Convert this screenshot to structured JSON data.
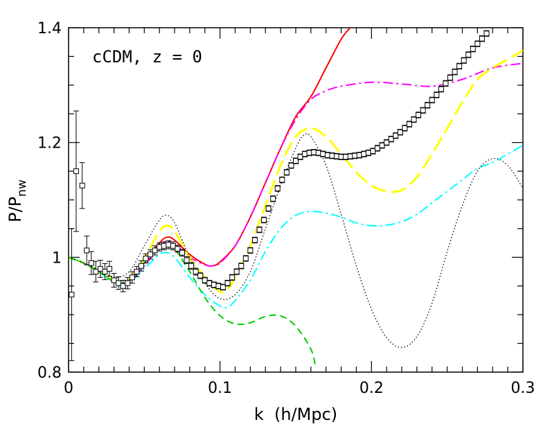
{
  "chart_data": {
    "type": "line",
    "title": "",
    "annotation": "cCDM, z = 0",
    "xlabel": "k  (h/Mpc)",
    "ylabel_main": "P/P",
    "ylabel_sub": "nw",
    "xlim": [
      0,
      0.3
    ],
    "ylim": [
      0.8,
      1.4
    ],
    "x_major_ticks": [
      0,
      0.1,
      0.2,
      0.3
    ],
    "x_tick_labels": [
      "0",
      "0.1",
      "0.2",
      "0.3"
    ],
    "y_major_ticks": [
      0.8,
      1.0,
      1.2,
      1.4
    ],
    "y_tick_labels": [
      "0.8",
      "1",
      "1.2",
      "1.4"
    ],
    "x_minor_step": 0.01,
    "y_minor_step": 0.05,
    "grid": false,
    "legend": "none",
    "series": [
      {
        "color": "#ff0000",
        "style": "solid",
        "width": 2,
        "points": [
          [
            0.0,
            1.0
          ],
          [
            0.01,
            0.99
          ],
          [
            0.02,
            0.975
          ],
          [
            0.03,
            0.957
          ],
          [
            0.035,
            0.955
          ],
          [
            0.04,
            0.96
          ],
          [
            0.05,
            0.99
          ],
          [
            0.06,
            1.025
          ],
          [
            0.065,
            1.035
          ],
          [
            0.07,
            1.03
          ],
          [
            0.08,
            1.005
          ],
          [
            0.09,
            0.988
          ],
          [
            0.095,
            0.985
          ],
          [
            0.1,
            0.992
          ],
          [
            0.11,
            1.02
          ],
          [
            0.12,
            1.07
          ],
          [
            0.13,
            1.13
          ],
          [
            0.14,
            1.19
          ],
          [
            0.15,
            1.245
          ],
          [
            0.16,
            1.28
          ],
          [
            0.17,
            1.33
          ],
          [
            0.18,
            1.38
          ],
          [
            0.186,
            1.4
          ]
        ]
      },
      {
        "color": "#ff00ff",
        "style": "dashdot",
        "width": 2,
        "points": [
          [
            0.0,
            1.0
          ],
          [
            0.01,
            0.99
          ],
          [
            0.02,
            0.975
          ],
          [
            0.03,
            0.957
          ],
          [
            0.035,
            0.955
          ],
          [
            0.04,
            0.958
          ],
          [
            0.05,
            0.985
          ],
          [
            0.06,
            1.018
          ],
          [
            0.065,
            1.028
          ],
          [
            0.07,
            1.022
          ],
          [
            0.08,
            1.0
          ],
          [
            0.09,
            0.987
          ],
          [
            0.095,
            0.985
          ],
          [
            0.1,
            0.99
          ],
          [
            0.11,
            1.02
          ],
          [
            0.12,
            1.07
          ],
          [
            0.13,
            1.13
          ],
          [
            0.14,
            1.19
          ],
          [
            0.15,
            1.24
          ],
          [
            0.16,
            1.275
          ],
          [
            0.17,
            1.29
          ],
          [
            0.18,
            1.298
          ],
          [
            0.2,
            1.305
          ],
          [
            0.22,
            1.302
          ],
          [
            0.24,
            1.298
          ],
          [
            0.26,
            1.31
          ],
          [
            0.28,
            1.33
          ],
          [
            0.3,
            1.338
          ]
        ]
      },
      {
        "color": "#ffff00",
        "style": "longdash",
        "width": 3,
        "points": [
          [
            0.0,
            1.0
          ],
          [
            0.01,
            0.99
          ],
          [
            0.02,
            0.975
          ],
          [
            0.03,
            0.96
          ],
          [
            0.035,
            0.958
          ],
          [
            0.04,
            0.962
          ],
          [
            0.05,
            0.998
          ],
          [
            0.06,
            1.045
          ],
          [
            0.065,
            1.055
          ],
          [
            0.07,
            1.045
          ],
          [
            0.08,
            1.0
          ],
          [
            0.09,
            0.965
          ],
          [
            0.1,
            0.94
          ],
          [
            0.105,
            0.945
          ],
          [
            0.11,
            0.965
          ],
          [
            0.12,
            1.02
          ],
          [
            0.13,
            1.09
          ],
          [
            0.14,
            1.16
          ],
          [
            0.15,
            1.21
          ],
          [
            0.16,
            1.225
          ],
          [
            0.17,
            1.21
          ],
          [
            0.18,
            1.18
          ],
          [
            0.19,
            1.148
          ],
          [
            0.2,
            1.125
          ],
          [
            0.21,
            1.115
          ],
          [
            0.22,
            1.117
          ],
          [
            0.23,
            1.14
          ],
          [
            0.24,
            1.18
          ],
          [
            0.25,
            1.225
          ],
          [
            0.26,
            1.27
          ],
          [
            0.27,
            1.31
          ],
          [
            0.28,
            1.33
          ],
          [
            0.29,
            1.345
          ],
          [
            0.3,
            1.36
          ]
        ]
      },
      {
        "color": "#00ffff",
        "style": "dashdot",
        "width": 2,
        "points": [
          [
            0.0,
            1.0
          ],
          [
            0.01,
            0.99
          ],
          [
            0.02,
            0.975
          ],
          [
            0.03,
            0.955
          ],
          [
            0.035,
            0.95
          ],
          [
            0.04,
            0.955
          ],
          [
            0.05,
            0.98
          ],
          [
            0.06,
            1.005
          ],
          [
            0.065,
            1.008
          ],
          [
            0.07,
            1.0
          ],
          [
            0.08,
            0.965
          ],
          [
            0.09,
            0.935
          ],
          [
            0.1,
            0.915
          ],
          [
            0.105,
            0.913
          ],
          [
            0.11,
            0.925
          ],
          [
            0.12,
            0.96
          ],
          [
            0.13,
            1.01
          ],
          [
            0.14,
            1.05
          ],
          [
            0.15,
            1.073
          ],
          [
            0.16,
            1.08
          ],
          [
            0.17,
            1.077
          ],
          [
            0.18,
            1.07
          ],
          [
            0.19,
            1.06
          ],
          [
            0.2,
            1.055
          ],
          [
            0.21,
            1.056
          ],
          [
            0.22,
            1.062
          ],
          [
            0.23,
            1.075
          ],
          [
            0.24,
            1.095
          ],
          [
            0.25,
            1.115
          ],
          [
            0.26,
            1.135
          ],
          [
            0.27,
            1.155
          ],
          [
            0.28,
            1.165
          ],
          [
            0.29,
            1.18
          ],
          [
            0.3,
            1.195
          ]
        ]
      },
      {
        "color": "#00cc00",
        "style": "dash",
        "width": 2,
        "points": [
          [
            0.0,
            1.0
          ],
          [
            0.01,
            0.99
          ],
          [
            0.02,
            0.975
          ],
          [
            0.03,
            0.957
          ],
          [
            0.035,
            0.955
          ],
          [
            0.04,
            0.96
          ],
          [
            0.05,
            0.99
          ],
          [
            0.06,
            1.018
          ],
          [
            0.065,
            1.025
          ],
          [
            0.07,
            1.015
          ],
          [
            0.08,
            0.975
          ],
          [
            0.09,
            0.93
          ],
          [
            0.1,
            0.898
          ],
          [
            0.11,
            0.884
          ],
          [
            0.12,
            0.886
          ],
          [
            0.13,
            0.897
          ],
          [
            0.14,
            0.898
          ],
          [
            0.15,
            0.88
          ],
          [
            0.16,
            0.84
          ],
          [
            0.163,
            0.81
          ]
        ]
      },
      {
        "color": "#000000",
        "style": "dot",
        "width": 1.3,
        "points": [
          [
            0.0,
            1.0
          ],
          [
            0.01,
            0.99
          ],
          [
            0.02,
            0.978
          ],
          [
            0.03,
            0.965
          ],
          [
            0.04,
            0.975
          ],
          [
            0.05,
            1.02
          ],
          [
            0.06,
            1.065
          ],
          [
            0.065,
            1.073
          ],
          [
            0.07,
            1.06
          ],
          [
            0.08,
            1.0
          ],
          [
            0.09,
            0.955
          ],
          [
            0.1,
            0.928
          ],
          [
            0.11,
            0.935
          ],
          [
            0.12,
            0.975
          ],
          [
            0.13,
            1.05
          ],
          [
            0.14,
            1.125
          ],
          [
            0.15,
            1.19
          ],
          [
            0.155,
            1.212
          ],
          [
            0.16,
            1.21
          ],
          [
            0.17,
            1.16
          ],
          [
            0.18,
            1.075
          ],
          [
            0.19,
            0.985
          ],
          [
            0.2,
            0.91
          ],
          [
            0.21,
            0.86
          ],
          [
            0.22,
            0.843
          ],
          [
            0.23,
            0.862
          ],
          [
            0.24,
            0.92
          ],
          [
            0.25,
            1.01
          ],
          [
            0.26,
            1.09
          ],
          [
            0.27,
            1.15
          ],
          [
            0.28,
            1.172
          ],
          [
            0.29,
            1.16
          ],
          [
            0.3,
            1.12
          ]
        ]
      }
    ],
    "measured_points": {
      "marker": "open-square",
      "points": [
        [
          0.002,
          0.935,
          0.115
        ],
        [
          0.005,
          1.15,
          0.105
        ],
        [
          0.009,
          1.125,
          0.04
        ],
        [
          0.012,
          1.012,
          0.025
        ],
        [
          0.015,
          0.99,
          0.02
        ],
        [
          0.018,
          0.975,
          0.018
        ],
        [
          0.021,
          0.98,
          0.015
        ],
        [
          0.024,
          0.975,
          0.014
        ],
        [
          0.027,
          0.98,
          0.013
        ],
        [
          0.03,
          0.96,
          0.012
        ],
        [
          0.033,
          0.955,
          0.011
        ],
        [
          0.036,
          0.95,
          0.01
        ],
        [
          0.039,
          0.955,
          0.01
        ],
        [
          0.042,
          0.965,
          0.01
        ],
        [
          0.045,
          0.975,
          0.009
        ],
        [
          0.048,
          0.985,
          0.009
        ],
        [
          0.051,
          0.998,
          0.008
        ],
        [
          0.054,
          1.005,
          0.008
        ],
        [
          0.057,
          1.012,
          0.008
        ],
        [
          0.06,
          1.018,
          0.007
        ],
        [
          0.063,
          1.02,
          0.007
        ],
        [
          0.066,
          1.022,
          0.007
        ],
        [
          0.069,
          1.02,
          0.007
        ],
        [
          0.072,
          1.015,
          0.006
        ],
        [
          0.075,
          1.008,
          0.006
        ],
        [
          0.078,
          0.995,
          0.006
        ],
        [
          0.081,
          0.985,
          0.006
        ],
        [
          0.084,
          0.975,
          0.006
        ],
        [
          0.087,
          0.968,
          0.005
        ],
        [
          0.09,
          0.96,
          0.005
        ],
        [
          0.093,
          0.955,
          0.005
        ],
        [
          0.096,
          0.952,
          0.005
        ],
        [
          0.099,
          0.95,
          0.005
        ],
        [
          0.102,
          0.948,
          0.005
        ],
        [
          0.105,
          0.955,
          0.005
        ],
        [
          0.108,
          0.965,
          0.005
        ],
        [
          0.111,
          0.975,
          0.005
        ],
        [
          0.114,
          0.985,
          0.005
        ],
        [
          0.117,
          0.998,
          0.005
        ],
        [
          0.12,
          1.012,
          0.005
        ],
        [
          0.123,
          1.03,
          0.005
        ],
        [
          0.126,
          1.048,
          0.005
        ],
        [
          0.129,
          1.065,
          0.005
        ],
        [
          0.132,
          1.085,
          0.005
        ],
        [
          0.135,
          1.102,
          0.005
        ],
        [
          0.138,
          1.12,
          0.005
        ],
        [
          0.141,
          1.135,
          0.005
        ],
        [
          0.144,
          1.148,
          0.005
        ],
        [
          0.147,
          1.16,
          0.005
        ],
        [
          0.15,
          1.168,
          0.005
        ],
        [
          0.153,
          1.175,
          0.005
        ],
        [
          0.156,
          1.18,
          0.005
        ],
        [
          0.159,
          1.182,
          0.005
        ],
        [
          0.162,
          1.183,
          0.005
        ],
        [
          0.165,
          1.182,
          0.005
        ],
        [
          0.168,
          1.18,
          0.005
        ],
        [
          0.171,
          1.178,
          0.005
        ],
        [
          0.174,
          1.177,
          0.005
        ],
        [
          0.177,
          1.176,
          0.005
        ],
        [
          0.18,
          1.175,
          0.005
        ],
        [
          0.183,
          1.175,
          0.005
        ],
        [
          0.186,
          1.176,
          0.005
        ],
        [
          0.189,
          1.177,
          0.005
        ],
        [
          0.192,
          1.178,
          0.005
        ],
        [
          0.195,
          1.18,
          0.005
        ],
        [
          0.198,
          1.182,
          0.005
        ],
        [
          0.201,
          1.185,
          0.005
        ],
        [
          0.204,
          1.19,
          0.005
        ],
        [
          0.207,
          1.195,
          0.005
        ],
        [
          0.21,
          1.2,
          0.005
        ],
        [
          0.213,
          1.206,
          0.005
        ],
        [
          0.216,
          1.212,
          0.005
        ],
        [
          0.219,
          1.218,
          0.005
        ],
        [
          0.222,
          1.225,
          0.005
        ],
        [
          0.225,
          1.232,
          0.005
        ],
        [
          0.228,
          1.24,
          0.005
        ],
        [
          0.231,
          1.248,
          0.005
        ],
        [
          0.234,
          1.256,
          0.005
        ],
        [
          0.237,
          1.265,
          0.005
        ],
        [
          0.24,
          1.274,
          0.005
        ],
        [
          0.243,
          1.283,
          0.005
        ],
        [
          0.246,
          1.293,
          0.005
        ],
        [
          0.249,
          1.303,
          0.005
        ],
        [
          0.252,
          1.313,
          0.005
        ],
        [
          0.255,
          1.323,
          0.005
        ],
        [
          0.258,
          1.333,
          0.005
        ],
        [
          0.261,
          1.343,
          0.005
        ],
        [
          0.264,
          1.353,
          0.005
        ],
        [
          0.267,
          1.363,
          0.005
        ],
        [
          0.27,
          1.372,
          0.005
        ],
        [
          0.273,
          1.381,
          0.005
        ],
        [
          0.276,
          1.39,
          0.005
        ]
      ]
    }
  }
}
